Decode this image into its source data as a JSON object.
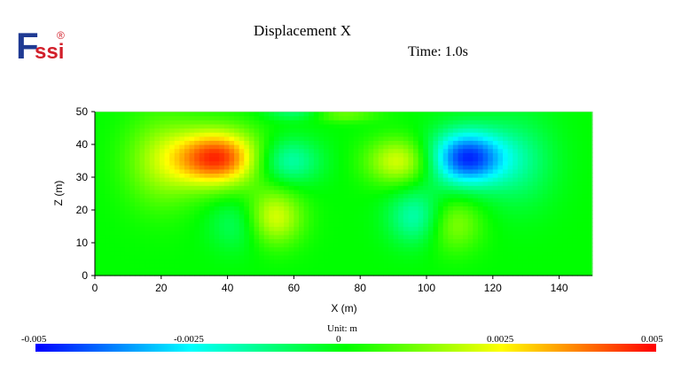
{
  "logo": {
    "text_f": "F",
    "text_ssi": "ssi",
    "registered": "®"
  },
  "page": {
    "title": "Displacement X",
    "time": "Time: 1.0s",
    "unit": "Unit:   m"
  },
  "chart_data": {
    "type": "heatmap",
    "title": "Displacement X",
    "xlabel": "X (m)",
    "ylabel": "Z (m)",
    "xlim": [
      0,
      150
    ],
    "ylim": [
      0,
      50
    ],
    "xticks": [
      "0",
      "20",
      "40",
      "60",
      "80",
      "100",
      "120",
      "140"
    ],
    "yticks": [
      "0",
      "10",
      "20",
      "30",
      "40",
      "50"
    ],
    "xtick_values": [
      0,
      20,
      40,
      60,
      80,
      100,
      120,
      140
    ],
    "ytick_values": [
      0,
      10,
      20,
      30,
      40,
      50
    ],
    "value_range": [
      -0.005,
      0.005
    ],
    "colorbar_ticks": [
      "-0.005",
      "-0.0025",
      "0",
      "0.0025",
      "0.005"
    ],
    "colorbar_values": [
      -0.005,
      -0.0025,
      0,
      0.0025,
      0.005
    ],
    "colormap": [
      "#0000ff",
      "#00ffff",
      "#00ff00",
      "#ffff00",
      "#ff0000"
    ],
    "features": [
      {
        "x": 37,
        "z": 36,
        "value": 0.0045,
        "sx": 9,
        "sz": 6
      },
      {
        "x": 58,
        "z": 35,
        "value": -0.0018,
        "sx": 7,
        "sz": 5
      },
      {
        "x": 92,
        "z": 35,
        "value": 0.0022,
        "sx": 7,
        "sz": 5
      },
      {
        "x": 112,
        "z": 36,
        "value": -0.0045,
        "sx": 8,
        "sz": 6
      },
      {
        "x": 54,
        "z": 18,
        "value": 0.0022,
        "sx": 6,
        "sz": 6
      },
      {
        "x": 43,
        "z": 16,
        "value": -0.001,
        "sx": 6,
        "sz": 6
      },
      {
        "x": 97,
        "z": 18,
        "value": -0.0018,
        "sx": 6,
        "sz": 6
      },
      {
        "x": 108,
        "z": 16,
        "value": 0.0014,
        "sx": 6,
        "sz": 6
      },
      {
        "x": 20,
        "z": 35,
        "value": 0.0015,
        "sx": 8,
        "sz": 10
      },
      {
        "x": 128,
        "z": 35,
        "value": -0.0012,
        "sx": 8,
        "sz": 10
      },
      {
        "x": 75,
        "z": 49,
        "value": 0.001,
        "sx": 7,
        "sz": 1.5
      },
      {
        "x": 60,
        "z": 49.5,
        "value": -0.001,
        "sx": 6,
        "sz": 1.5
      }
    ]
  }
}
